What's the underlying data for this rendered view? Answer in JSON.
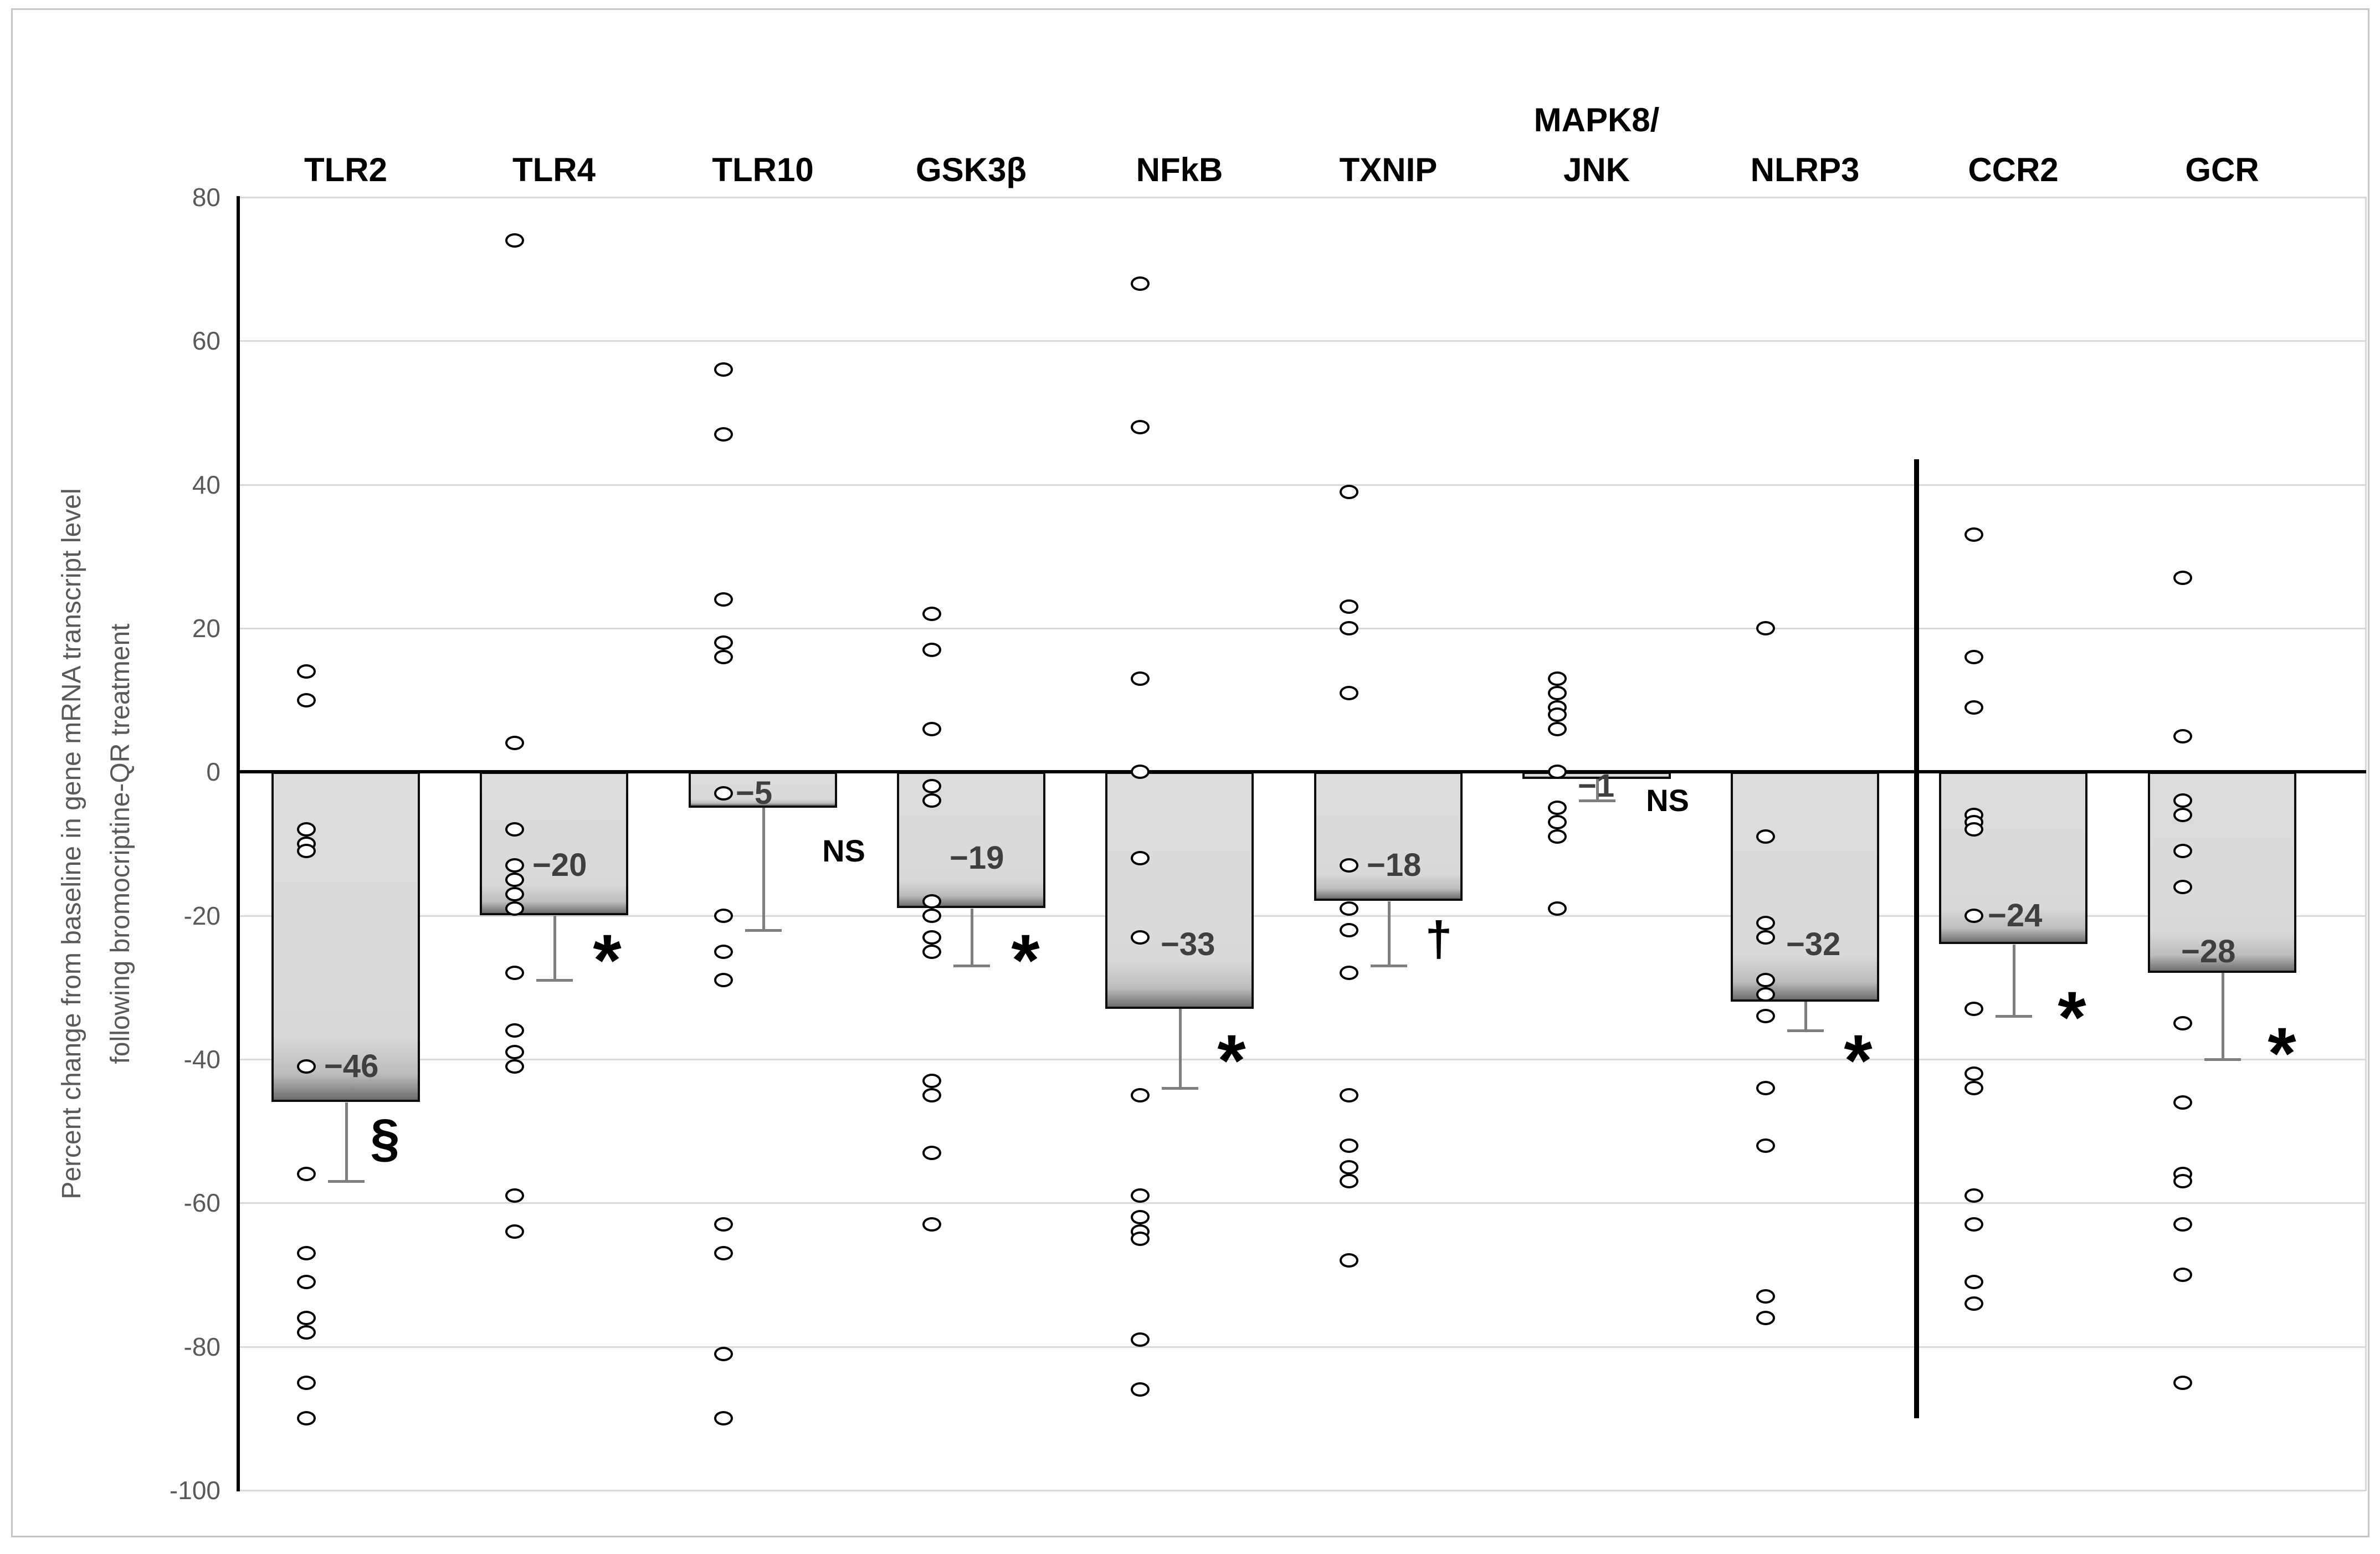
{
  "chart_data": {
    "type": "bar",
    "subtype": "bar-with-scatter-overlay",
    "title": "",
    "ylabel_line1": "Percent change from baseline in gene mRNA  transcript level",
    "ylabel_line2": "following bromocriptine-QR treatment",
    "ylim": [
      -100,
      80
    ],
    "ytick_step": 20,
    "yticks": [
      "80",
      "60",
      "40",
      "20",
      "0",
      "-20",
      "-40",
      "-60",
      "-80",
      "-100"
    ],
    "grid": true,
    "legend": false,
    "categories": [
      "TLR2",
      "TLR4",
      "TLR10",
      "GSK3β",
      "NFkB",
      "TXNIP",
      "MAPK8/\nJNK",
      "NLRP3",
      "CCR2",
      "GCR"
    ],
    "bar_values": [
      -46,
      -20,
      -5,
      -19,
      -33,
      -18,
      -1,
      -32,
      -24,
      -28
    ],
    "genes": [
      {
        "name": "TLR2",
        "bar": -46,
        "label": "−46",
        "label_value": -41,
        "label_x_offset": 95,
        "points": [
          14,
          10,
          -8,
          -10,
          -11,
          -41,
          -56,
          -67,
          -71,
          -76,
          -78,
          -85,
          -90
        ],
        "whisker_end": -57,
        "sig": {
          "symbol": "§",
          "value": -51,
          "x_offset": 205
        }
      },
      {
        "name": "TLR4",
        "bar": -20,
        "label": "−20",
        "label_value": -13,
        "label_x_offset": 95,
        "points": [
          74,
          4,
          -8,
          -13,
          -15,
          -17,
          -19,
          -28,
          -36,
          -39,
          -41,
          -59,
          -64
        ],
        "whisker_end": -29,
        "sig": {
          "symbol": "*",
          "value": -23,
          "x_offset": 230
        }
      },
      {
        "name": "TLR10",
        "bar": -5,
        "label": "−5",
        "label_value": -3,
        "label_x_offset": 85,
        "points": [
          56,
          47,
          24,
          18,
          16,
          -3,
          -20,
          -25,
          -29,
          -63,
          -67,
          -81,
          -90
        ],
        "whisker_end": -22,
        "sig": {
          "symbol": "NS",
          "value": -11,
          "x_offset": 280
        }
      },
      {
        "name": "GSK3β",
        "bar": -19,
        "label": "−19",
        "label_value": -12,
        "label_x_offset": 95,
        "points": [
          22,
          17,
          6,
          -2,
          -4,
          -18,
          -20,
          -23,
          -25,
          -43,
          -45,
          -53,
          -63
        ],
        "whisker_end": -27,
        "sig": {
          "symbol": "*",
          "value": -23,
          "x_offset": 232
        }
      },
      {
        "name": "NFkB",
        "bar": -33,
        "label": "−33",
        "label_value": -24,
        "label_x_offset": 100,
        "points": [
          68,
          48,
          13,
          0,
          -12,
          -23,
          -45,
          -59,
          -62,
          -64,
          -65,
          -79,
          -86
        ],
        "whisker_end": -44,
        "sig": {
          "symbol": "*",
          "value": -37,
          "x_offset": 228
        }
      },
      {
        "name": "TXNIP",
        "bar": -18,
        "label": "−18",
        "label_value": -13,
        "label_x_offset": 95,
        "points": [
          39,
          23,
          20,
          11,
          -13,
          -19,
          -22,
          -28,
          -45,
          -52,
          -55,
          -57,
          -68
        ],
        "whisker_end": -27,
        "sig": {
          "symbol": "†",
          "value": -22,
          "x_offset": 225
        }
      },
      {
        "name": "MAPK8/\nJNK",
        "bar": -1,
        "label": "−1",
        "label_value": -2,
        "label_x_offset": 100,
        "points": [
          13,
          11,
          9,
          8,
          6,
          0,
          -5,
          -7,
          -9,
          -19
        ],
        "whisker_end": -4,
        "sig": {
          "symbol": "NS",
          "value": -4,
          "x_offset": 262
        }
      },
      {
        "name": "NLRP3",
        "bar": -32,
        "label": "−32",
        "label_value": -24,
        "label_x_offset": 100,
        "points": [
          20,
          -9,
          -21,
          -23,
          -29,
          -31,
          -34,
          -44,
          -52,
          -73,
          -76
        ],
        "whisker_end": -36,
        "sig": {
          "symbol": "*",
          "value": -37,
          "x_offset": 230
        }
      },
      {
        "name": "CCR2",
        "bar": -24,
        "label": "−24",
        "label_value": -20,
        "label_x_offset": 88,
        "points": [
          33,
          16,
          9,
          -6,
          -7,
          -8,
          -20,
          -33,
          -42,
          -44,
          -59,
          -63,
          -71,
          -74
        ],
        "whisker_end": -34,
        "sig": {
          "symbol": "*",
          "value": -31,
          "x_offset": 240
        }
      },
      {
        "name": "GCR",
        "bar": -28,
        "label": "−28",
        "label_value": -25,
        "label_x_offset": 60,
        "points": [
          27,
          5,
          -4,
          -6,
          -11,
          -16,
          -35,
          -46,
          -56,
          -57,
          -63,
          -70,
          -85
        ],
        "whisker_end": -40,
        "sig": {
          "symbol": "*",
          "value": -36,
          "x_offset": 242
        }
      }
    ],
    "group_divider": {
      "between": [
        "NLRP3",
        "CCR2"
      ],
      "from_value": 43.5,
      "to_value": -90
    },
    "colors": {
      "bar_fill": "#d9d9d9",
      "bar_border": "#0d0d0d",
      "bar_shadow": "#6f6f6f",
      "gridline": "#d9d9d9",
      "zero_line": "#000000",
      "axis_line": "#000000",
      "tick_text": "#595959",
      "title_text": "#595959",
      "header_text": "#000000",
      "bar_label_text": "#3f3f3f",
      "whisker": "#7f7f7f",
      "frame": "#c6c6c6",
      "point_fill": "#ffffff"
    }
  }
}
